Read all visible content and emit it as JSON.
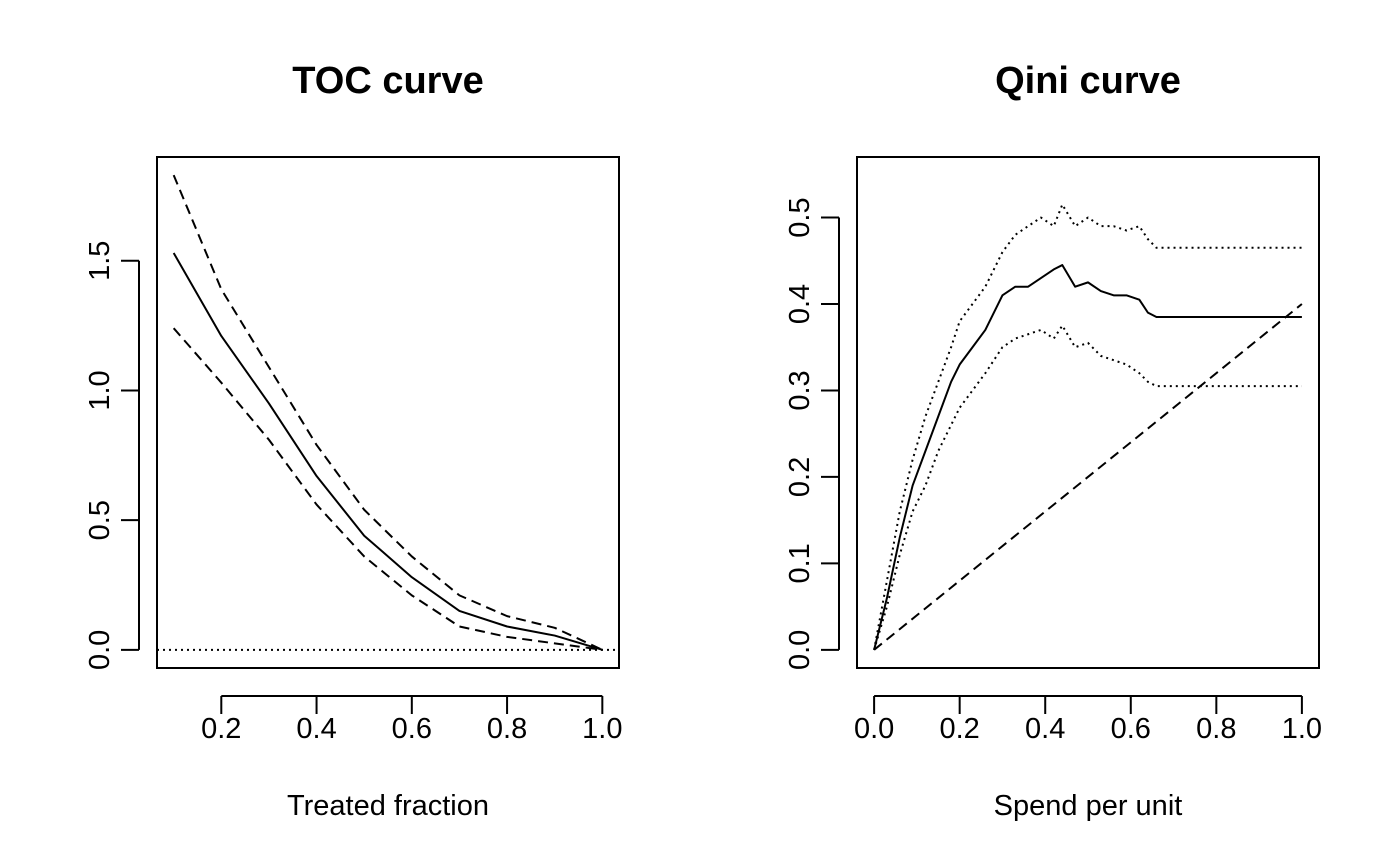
{
  "chart_data": [
    {
      "type": "line",
      "title": "TOC curve",
      "xlabel": "Treated fraction",
      "ylabel": "",
      "xlim": [
        0.065,
        1.035
      ],
      "ylim": [
        -0.07,
        1.9
      ],
      "xticks": [
        0.2,
        0.4,
        0.6,
        0.8,
        1.0
      ],
      "xtick_labels": [
        "0.2",
        "0.4",
        "0.6",
        "0.8",
        "1.0"
      ],
      "yticks": [
        0.0,
        0.5,
        1.0,
        1.5
      ],
      "ytick_labels": [
        "0.0",
        "0.5",
        "1.0",
        "1.5"
      ],
      "series": [
        {
          "style": "solid",
          "x": [
            0.1,
            0.2,
            0.3,
            0.4,
            0.5,
            0.6,
            0.7,
            0.8,
            0.9,
            1.0
          ],
          "y": [
            1.53,
            1.21,
            0.95,
            0.67,
            0.44,
            0.28,
            0.15,
            0.09,
            0.055,
            0.0
          ]
        },
        {
          "style": "dashed",
          "x": [
            0.1,
            0.2,
            0.3,
            0.4,
            0.5,
            0.6,
            0.7,
            0.8,
            0.9,
            1.0
          ],
          "y": [
            1.83,
            1.39,
            1.09,
            0.79,
            0.54,
            0.36,
            0.21,
            0.13,
            0.085,
            0.0
          ]
        },
        {
          "style": "dashed",
          "x": [
            0.1,
            0.2,
            0.3,
            0.4,
            0.5,
            0.6,
            0.7,
            0.8,
            0.9,
            1.0
          ],
          "y": [
            1.24,
            1.03,
            0.81,
            0.56,
            0.36,
            0.21,
            0.09,
            0.05,
            0.025,
            0.0
          ]
        },
        {
          "style": "dotted",
          "x": [
            0.065,
            1.035
          ],
          "y": [
            0.0,
            0.0
          ]
        }
      ]
    },
    {
      "type": "line",
      "title": "Qini curve",
      "xlabel": "Spend per unit",
      "ylabel": "",
      "xlim": [
        -0.04,
        1.04
      ],
      "ylim": [
        -0.021,
        0.57
      ],
      "xticks": [
        0.0,
        0.2,
        0.4,
        0.6,
        0.8,
        1.0
      ],
      "xtick_labels": [
        "0.0",
        "0.2",
        "0.4",
        "0.6",
        "0.8",
        "1.0"
      ],
      "yticks": [
        0.0,
        0.1,
        0.2,
        0.3,
        0.4,
        0.5
      ],
      "ytick_labels": [
        "0.0",
        "0.1",
        "0.2",
        "0.3",
        "0.4",
        "0.5"
      ],
      "series": [
        {
          "style": "solid",
          "x": [
            0,
            0.03,
            0.06,
            0.09,
            0.12,
            0.15,
            0.18,
            0.2,
            0.23,
            0.26,
            0.3,
            0.33,
            0.36,
            0.39,
            0.42,
            0.44,
            0.47,
            0.5,
            0.53,
            0.56,
            0.59,
            0.62,
            0.64,
            0.66,
            0.67,
            1.0
          ],
          "y": [
            0,
            0.06,
            0.13,
            0.19,
            0.23,
            0.27,
            0.31,
            0.33,
            0.35,
            0.37,
            0.41,
            0.42,
            0.42,
            0.43,
            0.44,
            0.445,
            0.42,
            0.425,
            0.415,
            0.41,
            0.41,
            0.405,
            0.39,
            0.385,
            0.385,
            0.385
          ]
        },
        {
          "style": "dotted",
          "x": [
            0,
            0.03,
            0.06,
            0.09,
            0.12,
            0.15,
            0.18,
            0.2,
            0.23,
            0.26,
            0.3,
            0.33,
            0.36,
            0.39,
            0.42,
            0.44,
            0.47,
            0.5,
            0.53,
            0.56,
            0.59,
            0.62,
            0.64,
            0.66,
            0.67,
            1.0
          ],
          "y": [
            0,
            0.08,
            0.16,
            0.22,
            0.27,
            0.31,
            0.35,
            0.38,
            0.4,
            0.42,
            0.46,
            0.48,
            0.49,
            0.5,
            0.49,
            0.515,
            0.49,
            0.5,
            0.49,
            0.49,
            0.485,
            0.49,
            0.475,
            0.465,
            0.465,
            0.465
          ]
        },
        {
          "style": "dotted",
          "x": [
            0,
            0.03,
            0.06,
            0.09,
            0.12,
            0.15,
            0.18,
            0.2,
            0.23,
            0.26,
            0.3,
            0.33,
            0.36,
            0.39,
            0.42,
            0.44,
            0.47,
            0.5,
            0.53,
            0.56,
            0.59,
            0.62,
            0.64,
            0.66,
            0.67,
            1.0
          ],
          "y": [
            0,
            0.05,
            0.11,
            0.16,
            0.19,
            0.23,
            0.26,
            0.28,
            0.3,
            0.32,
            0.35,
            0.36,
            0.365,
            0.37,
            0.36,
            0.375,
            0.35,
            0.355,
            0.34,
            0.335,
            0.33,
            0.32,
            0.31,
            0.305,
            0.305,
            0.305
          ]
        },
        {
          "style": "dashed",
          "x": [
            0.0,
            1.0
          ],
          "y": [
            0.0,
            0.4
          ]
        }
      ]
    }
  ]
}
